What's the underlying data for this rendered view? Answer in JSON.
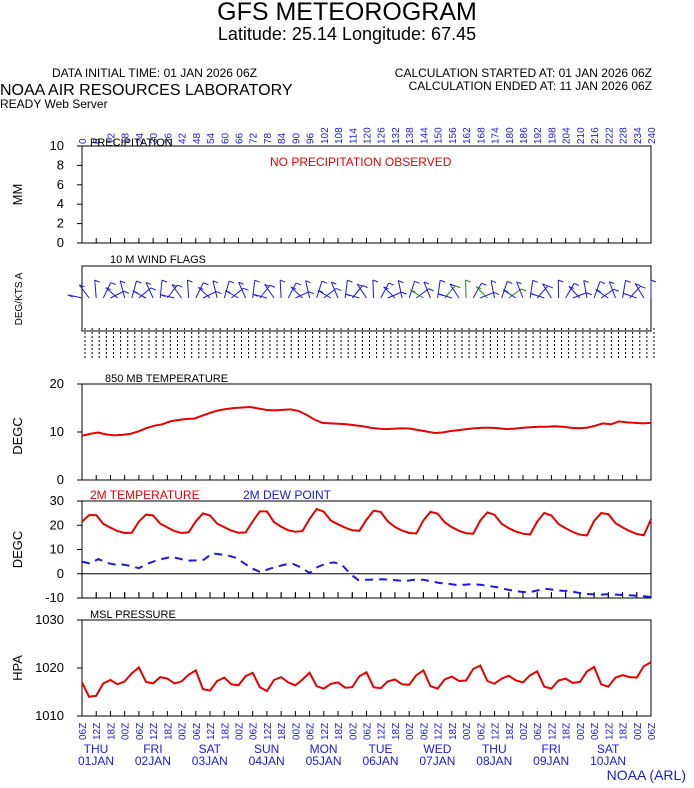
{
  "header": {
    "title": "GFS METEOROGRAM",
    "subtitle": "Latitude: 25.14 Longitude:  67.45",
    "init_time": "DATA INITIAL TIME: 01 JAN 2026 06Z",
    "calc_started": "CALCULATION STARTED AT: 01 JAN 2026 06Z",
    "calc_ended": "CALCULATION ENDED AT: 11 JAN 2026 06Z",
    "lab": "NOAA AIR RESOURCES LABORATORY",
    "server": "READY Web Server",
    "credit": "NOAA (ARL)"
  },
  "colors": {
    "red": "#e60000",
    "blue": "#1a1ad6",
    "green": "#1a8a1a",
    "black": "#000000"
  },
  "chart_data": [
    {
      "type": "line",
      "title": "PRECIPITATION",
      "ylabel": "MM",
      "ylim": [
        0,
        10
      ],
      "yticks": [
        "0",
        "2",
        "4",
        "6",
        "8",
        "10"
      ],
      "annotation": "NO PRECIPITATION OBSERVED",
      "x_hours": [
        0,
        6,
        12,
        18,
        24,
        30,
        36,
        42,
        48,
        54,
        60,
        66,
        72,
        78,
        84,
        90,
        96,
        102,
        108,
        114,
        120,
        126,
        132,
        138,
        144,
        150,
        156,
        162,
        168,
        174,
        180,
        186,
        192,
        198,
        204,
        210,
        216,
        222,
        228,
        234,
        240
      ],
      "values": []
    },
    {
      "type": "table",
      "title": "10 M  WIND FLAGS",
      "ylabel": "DEG/KTS  A"
    },
    {
      "type": "line",
      "title": "850 MB  TEMPERATURE",
      "ylabel": "DEGC",
      "ylim": [
        0,
        20
      ],
      "yticks": [
        "0",
        "10",
        "20"
      ],
      "series": [
        {
          "color": "#e60000",
          "values": [
            9.2,
            9.6,
            9.9,
            9.5,
            9.3,
            9.4,
            9.6,
            10.1,
            10.8,
            11.3,
            11.6,
            12.2,
            12.5,
            12.7,
            12.8,
            13.4,
            14.0,
            14.5,
            14.8,
            15.0,
            15.1,
            15.2,
            14.9,
            14.6,
            14.5,
            14.6,
            14.7,
            14.4,
            13.6,
            12.6,
            11.9,
            11.8,
            11.7,
            11.6,
            11.4,
            11.2,
            10.9,
            10.7,
            10.6,
            10.7,
            10.8,
            10.7,
            10.4,
            10.1,
            9.8,
            9.9,
            10.2,
            10.4,
            10.6,
            10.8,
            10.9,
            10.9,
            10.8,
            10.6,
            10.7,
            10.9,
            11.0,
            11.1,
            11.1,
            11.2,
            11.1,
            10.9,
            10.8,
            10.9,
            11.3,
            11.8,
            11.6,
            12.2,
            12.0,
            11.9,
            11.8,
            11.9
          ]
        }
      ]
    },
    {
      "type": "line",
      "ylabel": "DEGC",
      "ylim": [
        -10,
        30
      ],
      "yticks": [
        "-10",
        "0",
        "10",
        "20",
        "30"
      ],
      "series": [
        {
          "name": "2M TEMPERATURE",
          "color": "#e60000",
          "values": [
            21.5,
            24.2,
            24.2,
            20.6,
            19.0,
            17.6,
            16.8,
            16.9,
            21.5,
            24.4,
            24.0,
            20.7,
            19.1,
            17.6,
            16.8,
            17.1,
            21.6,
            24.9,
            24.0,
            20.7,
            19.2,
            17.8,
            16.9,
            17.0,
            21.6,
            25.7,
            25.7,
            21.3,
            19.4,
            17.9,
            17.3,
            17.6,
            22.6,
            26.7,
            25.6,
            21.9,
            20.4,
            19.0,
            17.9,
            17.7,
            22.3,
            26.0,
            25.5,
            21.6,
            19.3,
            17.8,
            16.8,
            16.6,
            22.0,
            25.5,
            24.8,
            21.2,
            19.2,
            17.7,
            16.7,
            16.5,
            21.9,
            25.3,
            24.3,
            20.6,
            18.8,
            17.4,
            16.5,
            16.2,
            21.5,
            25.1,
            24.0,
            20.5,
            18.8,
            17.2,
            16.1,
            15.8,
            21.8,
            25.0,
            24.6,
            20.9,
            19.1,
            17.6,
            16.4,
            15.9,
            22.4
          ]
        },
        {
          "name": "2M  DEW POINT",
          "color": "#1a1ad6",
          "values": [
            5.0,
            4.2,
            6.1,
            4.5,
            3.8,
            3.8,
            3.2,
            2.3,
            4.0,
            5.3,
            6.2,
            7.0,
            6.2,
            5.4,
            5.5,
            5.8,
            8.4,
            8.0,
            7.5,
            6.5,
            4.2,
            2.1,
            0.6,
            2.0,
            2.9,
            3.8,
            4.0,
            2.5,
            0.3,
            2.8,
            4.2,
            4.7,
            3.6,
            0.0,
            -2.6,
            -2.5,
            -2.4,
            -2.3,
            -2.5,
            -2.8,
            -2.9,
            -2.4,
            -2.5,
            -3.1,
            -3.8,
            -4.1,
            -4.6,
            -4.5,
            -4.3,
            -4.5,
            -5.0,
            -5.5,
            -6.3,
            -7.0,
            -7.4,
            -7.7,
            -6.9,
            -6.2,
            -6.6,
            -7.0,
            -7.1,
            -7.8,
            -8.3,
            -8.5,
            -8.6,
            -8.4,
            -8.7,
            -8.8,
            -9.0,
            -9.2,
            -9.6
          ]
        }
      ]
    },
    {
      "type": "line",
      "title": "MSL PRESSURE",
      "ylabel": "HPA",
      "ylim": [
        1010,
        1030
      ],
      "yticks": [
        "1010",
        "1020",
        "1030"
      ],
      "series": [
        {
          "color": "#e60000",
          "values": [
            1017,
            1014,
            1014.2,
            1016.8,
            1017.5,
            1016.6,
            1017.2,
            1018.9,
            1020.1,
            1017.1,
            1016.8,
            1018.1,
            1017.8,
            1016.8,
            1017.2,
            1018.6,
            1019.5,
            1015.6,
            1015.3,
            1017.3,
            1018.0,
            1016.6,
            1016.4,
            1018.3,
            1019.0,
            1016.0,
            1015.2,
            1017.5,
            1018.1,
            1017.0,
            1016.4,
            1017.6,
            1019.0,
            1016.2,
            1015.7,
            1016.7,
            1017.0,
            1015.9,
            1016.0,
            1018.3,
            1019.1,
            1016.0,
            1015.8,
            1017.2,
            1017.6,
            1016.6,
            1016.5,
            1018.5,
            1019.5,
            1016.2,
            1015.7,
            1017.6,
            1018.2,
            1017.3,
            1017.4,
            1019.8,
            1020.5,
            1017.3,
            1016.7,
            1017.8,
            1018.4,
            1017.4,
            1017.0,
            1018.5,
            1019.3,
            1016.1,
            1015.7,
            1017.4,
            1017.8,
            1016.9,
            1017.1,
            1019.3,
            1020.2,
            1016.6,
            1016.1,
            1018.0,
            1018.5,
            1018.1,
            1018.0,
            1020.4,
            1021.2
          ]
        }
      ]
    }
  ],
  "hour_labels": [
    "0",
    "6",
    "12",
    "18",
    "24",
    "30",
    "36",
    "42",
    "48",
    "54",
    "60",
    "66",
    "72",
    "78",
    "84",
    "90",
    "96",
    "102",
    "108",
    "114",
    "120",
    "126",
    "132",
    "138",
    "144",
    "150",
    "156",
    "162",
    "168",
    "174",
    "180",
    "186",
    "192",
    "198",
    "204",
    "210",
    "216",
    "222",
    "228",
    "234",
    "240"
  ],
  "time_labels": [
    "06Z",
    "12Z",
    "18Z",
    "00Z"
  ],
  "days": [
    {
      "dow": "THU",
      "date": "01JAN"
    },
    {
      "dow": "FRI",
      "date": "02JAN"
    },
    {
      "dow": "SAT",
      "date": "03JAN"
    },
    {
      "dow": "SUN",
      "date": "04JAN"
    },
    {
      "dow": "MON",
      "date": "05JAN"
    },
    {
      "dow": "TUE",
      "date": "06JAN"
    },
    {
      "dow": "WED",
      "date": "07JAN"
    },
    {
      "dow": "THU",
      "date": "08JAN"
    },
    {
      "dow": "FRI",
      "date": "09JAN"
    },
    {
      "dow": "SAT",
      "date": "10JAN"
    }
  ]
}
